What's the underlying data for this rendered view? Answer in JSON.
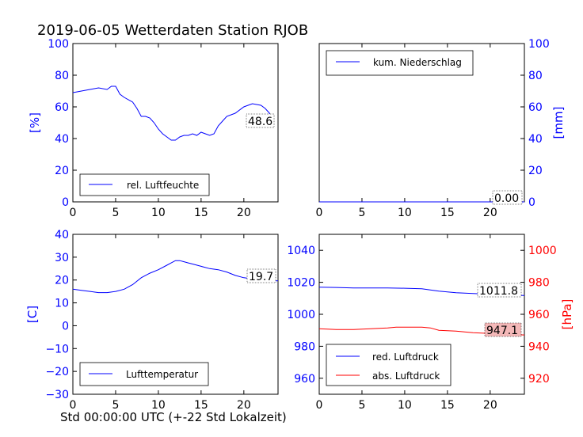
{
  "title": "2019-06-05 Wetterdaten Station RJOB",
  "xlabel": "Std 00:00:00 UTC (+-22 Std Lokalzeit)",
  "colors": {
    "blue": "#0000ff",
    "red": "#ff0000",
    "axis": "#000000"
  },
  "chart_data": [
    {
      "type": "line",
      "panel": "top-left",
      "ylabel": "[%]",
      "xlim": [
        0,
        24
      ],
      "ylim": [
        0,
        100
      ],
      "xticks": [
        "0",
        "5",
        "10",
        "15",
        "20"
      ],
      "yticks": [
        "0",
        "20",
        "40",
        "60",
        "80",
        "100"
      ],
      "grid": false,
      "legend": "bottom-left",
      "series": [
        {
          "name": "rel. Luftfeuchte",
          "color": "#0000ff",
          "x": [
            0,
            1,
            2,
            3,
            4,
            4.5,
            5,
            5.5,
            6,
            7,
            7.5,
            8,
            8.5,
            9,
            9.5,
            10,
            10.5,
            11,
            11.5,
            12,
            12.5,
            13,
            13.5,
            14,
            14.5,
            15,
            15.5,
            16,
            16.5,
            17,
            17.5,
            18,
            19,
            20,
            21,
            22,
            22.5,
            23,
            23.3
          ],
          "y": [
            69,
            70,
            71,
            72,
            71,
            73,
            73,
            68,
            66,
            63,
            59,
            54,
            54,
            53,
            50,
            46,
            43,
            41,
            39,
            39,
            41,
            42,
            42,
            43,
            42,
            44,
            43,
            42,
            43,
            48,
            51,
            54,
            56,
            60,
            62,
            61,
            59,
            56,
            49
          ]
        }
      ],
      "annotation": "48.6"
    },
    {
      "type": "line",
      "panel": "top-right",
      "ylabel": "[mm]",
      "xlim": [
        0,
        24
      ],
      "ylim": [
        0,
        100
      ],
      "xticks": [
        "0",
        "5",
        "10",
        "15",
        "20"
      ],
      "yticks": [
        "0",
        "20",
        "40",
        "60",
        "80",
        "100"
      ],
      "grid": false,
      "legend": "top-left",
      "series": [
        {
          "name": "kum. Niederschlag",
          "color": "#0000ff",
          "x": [
            0,
            24
          ],
          "y": [
            0,
            0
          ]
        }
      ],
      "annotation": "0.00"
    },
    {
      "type": "line",
      "panel": "bottom-left",
      "ylabel": "[C]",
      "xlim": [
        0,
        24
      ],
      "ylim": [
        -30,
        40
      ],
      "xticks": [
        "0",
        "5",
        "10",
        "15",
        "20"
      ],
      "yticks": [
        "−30",
        "−20",
        "−10",
        "0",
        "10",
        "20",
        "30",
        "40"
      ],
      "grid": false,
      "legend": "bottom-left",
      "series": [
        {
          "name": "Lufttemperatur",
          "color": "#0000ff",
          "x": [
            0,
            1,
            2,
            3,
            4,
            5,
            6,
            7,
            8,
            9,
            10,
            11,
            11.5,
            12,
            12.5,
            13,
            13.5,
            14,
            15,
            16,
            17,
            18,
            19,
            20,
            21,
            22,
            23,
            24
          ],
          "y": [
            16,
            15.5,
            15,
            14.5,
            14.5,
            15,
            16,
            18,
            21,
            23,
            24.5,
            26.5,
            27.5,
            28.5,
            28.5,
            28,
            27.5,
            27,
            26,
            25,
            24.5,
            23.5,
            22,
            21,
            20.5,
            20,
            19.5,
            19.7
          ]
        }
      ],
      "annotation": "19.7"
    },
    {
      "type": "line",
      "panel": "bottom-right",
      "ylabel": "[hPa]",
      "xlim": [
        0,
        24
      ],
      "ylim_left": [
        950,
        1050
      ],
      "ylim_right": [
        910,
        1010
      ],
      "xticks": [
        "0",
        "5",
        "10",
        "15",
        "20"
      ],
      "yticks_left": [
        "960",
        "980",
        "1000",
        "1020",
        "1040"
      ],
      "yticks_right": [
        "920",
        "940",
        "960",
        "980",
        "1000"
      ],
      "grid": false,
      "legend": "bottom-left",
      "series": [
        {
          "name": "red. Luftdruck",
          "color": "#0000ff",
          "axis": "left",
          "x": [
            0,
            2,
            4,
            6,
            8,
            10,
            12,
            14,
            16,
            18,
            20,
            22,
            24
          ],
          "y": [
            1017,
            1016.8,
            1016.5,
            1016.5,
            1016.5,
            1016.3,
            1016,
            1014.5,
            1013.5,
            1013,
            1012.5,
            1012,
            1011.8
          ]
        },
        {
          "name": "abs. Luftdruck",
          "color": "#ff0000",
          "axis": "right",
          "x": [
            0,
            2,
            4,
            6,
            8,
            9,
            10,
            11,
            12,
            13,
            14,
            16,
            18,
            20,
            22,
            24
          ],
          "y": [
            951,
            950.5,
            950.5,
            951,
            951.5,
            952,
            952,
            952,
            952,
            951.5,
            950,
            949.5,
            948.5,
            948,
            947.5,
            947.1
          ]
        }
      ],
      "annotations": [
        "1011.8",
        "947.1"
      ]
    }
  ]
}
